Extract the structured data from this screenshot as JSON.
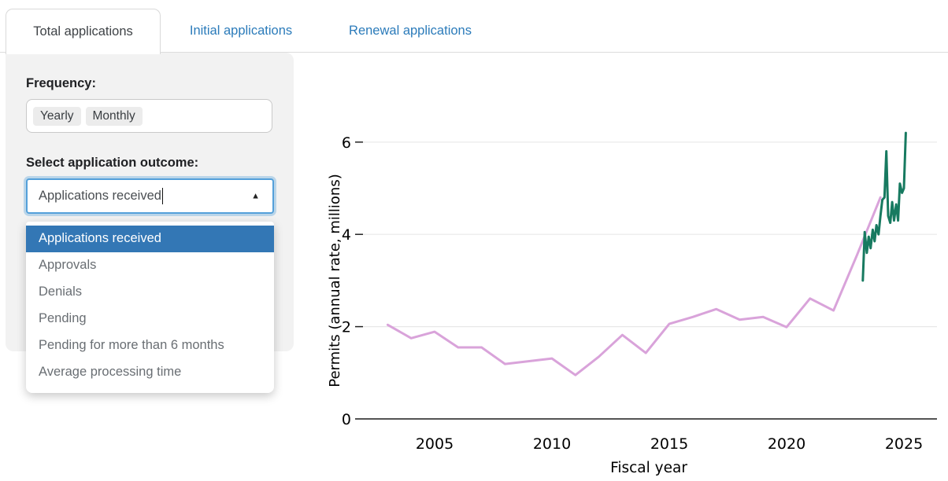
{
  "tabs": [
    {
      "label": "Total applications",
      "active": true
    },
    {
      "label": "Initial applications",
      "active": false
    },
    {
      "label": "Renewal applications",
      "active": false
    }
  ],
  "panel": {
    "frequency_label": "Frequency:",
    "frequency_options": [
      "Yearly",
      "Monthly"
    ],
    "outcome_label": "Select application outcome:",
    "outcome_value": "Applications received",
    "selected_option": "Applications received",
    "dropdown_options": [
      "Applications received",
      "Approvals",
      "Denials",
      "Pending",
      "Pending for more than 6 months",
      "Average processing time"
    ]
  },
  "icons": {
    "caret_up": "▲"
  },
  "colors": {
    "tab_link": "#2b7bba",
    "selected_item_bg": "#3377b5",
    "input_focus_border": "#54a0da",
    "yearly_line": "#d9a3da",
    "monthly_line": "#177a60",
    "gridline": "#e8e8e8",
    "axis": "#1a1a1a"
  },
  "chart_data": {
    "type": "line",
    "title": "",
    "xlabel": "Fiscal year",
    "ylabel": "Permits (annual rate, millions)",
    "x_ticks": [
      2005,
      2010,
      2015,
      2020,
      2025
    ],
    "y_ticks": [
      0,
      2,
      4,
      6
    ],
    "xlim": [
      2002,
      2026.5
    ],
    "ylim": [
      0,
      6.4
    ],
    "grid": true,
    "legend_position": "none",
    "series": [
      {
        "name": "yearly",
        "color": "#d9a3da",
        "x": [
          2003,
          2004,
          2005,
          2006,
          2007,
          2008,
          2009,
          2010,
          2011,
          2012,
          2013,
          2014,
          2015,
          2016,
          2017,
          2018,
          2019,
          2020,
          2021,
          2022,
          2023,
          2024
        ],
        "values": [
          2.04,
          1.75,
          1.89,
          1.55,
          1.55,
          1.19,
          1.25,
          1.31,
          0.95,
          1.35,
          1.82,
          1.43,
          2.06,
          2.21,
          2.38,
          2.15,
          2.21,
          1.99,
          2.61,
          2.35,
          3.55,
          4.8
        ]
      },
      {
        "name": "monthly",
        "color": "#177a60",
        "x": [
          2023.25,
          2023.33,
          2023.42,
          2023.5,
          2023.58,
          2023.67,
          2023.75,
          2023.83,
          2023.92,
          2024.0,
          2024.08,
          2024.17,
          2024.25,
          2024.33,
          2024.42,
          2024.5,
          2024.58,
          2024.67,
          2024.75,
          2024.83,
          2024.92,
          2025.0,
          2025.08
        ],
        "values": [
          3.0,
          4.05,
          3.6,
          3.95,
          3.7,
          4.1,
          3.85,
          4.2,
          4.0,
          4.4,
          4.75,
          4.8,
          5.8,
          4.4,
          4.25,
          4.7,
          4.3,
          4.65,
          4.3,
          5.1,
          4.9,
          5.0,
          6.2
        ]
      }
    ]
  }
}
